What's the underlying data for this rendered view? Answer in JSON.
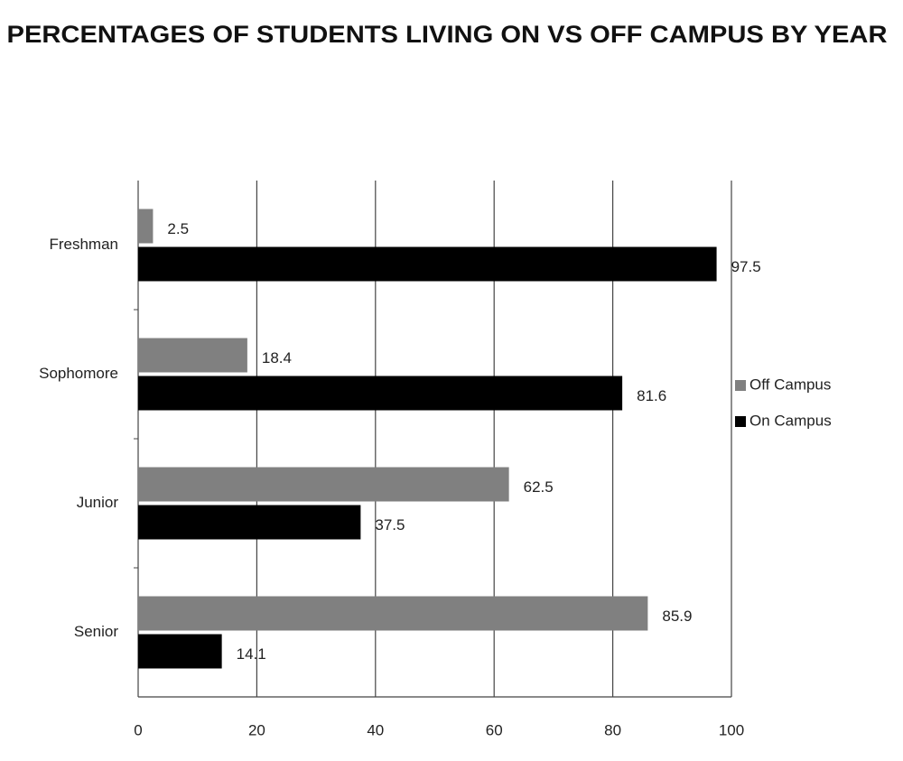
{
  "chart_data": {
    "type": "hbar",
    "title": "PERCENTAGES OF STUDENTS LIVING ON VS OFF CAMPUS BY YEAR",
    "categories": [
      "Freshman",
      "Sophomore",
      "Junior",
      "Senior"
    ],
    "series": [
      {
        "name": "Off Campus",
        "color": "#808080",
        "values": [
          2.5,
          18.4,
          62.5,
          85.9
        ]
      },
      {
        "name": "On Campus",
        "color": "#000000",
        "values": [
          97.5,
          81.6,
          37.5,
          14.1
        ]
      }
    ],
    "xlim": [
      0,
      100
    ],
    "xticks": [
      0,
      20,
      40,
      60,
      80,
      100
    ],
    "grid": true,
    "legend": "right"
  }
}
